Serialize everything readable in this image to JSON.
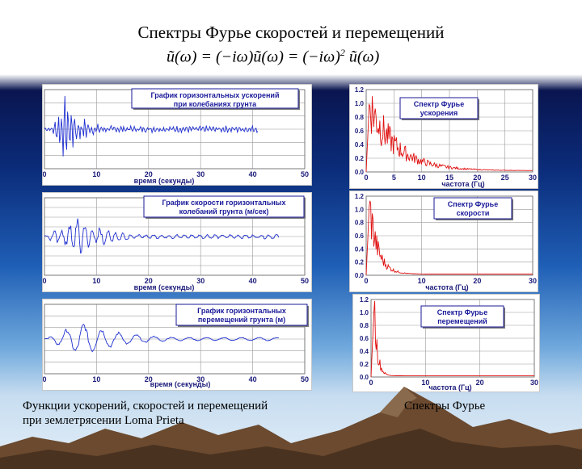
{
  "slide": {
    "title": "Спектры Фурье скоростей и перемещений",
    "formula": {
      "lhs": "ũ(ω) = (−iω)ũ(ω) = (−iω)",
      "power": "2",
      "rhs": " ũ(ω)"
    }
  },
  "left_panels": [
    {
      "title_lines": [
        "График горизонтальных ускорений",
        "при колебаниях грунта"
      ],
      "y_ticks": [
        "6.0",
        "4.0",
        "2.0",
        "0.0",
        "-2.0",
        "-4.0",
        "-6.0"
      ],
      "x_ticks": [
        "0",
        "10",
        "20",
        "30",
        "40",
        "50"
      ],
      "x_label": "время (секунды)"
    },
    {
      "title_lines": [
        "График скорости горизонтальных",
        "колебаний грунта (м/сек)"
      ],
      "y_ticks": [
        "0.4",
        "0.3",
        "0.2",
        "0.1",
        "0.0",
        "-0.1",
        "-0.2",
        "-0.3",
        "-0.4"
      ],
      "x_ticks": [
        "0",
        "10",
        "20",
        "30",
        "40",
        "50"
      ],
      "x_label": "время (секунды)"
    },
    {
      "title_lines": [
        "График горизонтальных",
        "перемещений грунта (м)"
      ],
      "y_ticks": [
        "0.15",
        "0.10",
        "0.05",
        "0.00",
        "-0.05",
        "-0.10",
        "-0.15"
      ],
      "x_ticks": [
        "0",
        "10",
        "20",
        "30",
        "40",
        "50"
      ],
      "x_label": "время (секунды)"
    }
  ],
  "right_panels": [
    {
      "title_lines": [
        "Спектр Фурье",
        "ускорения"
      ],
      "y_ticks": [
        "1.2",
        "1.0",
        "0.8",
        "0.6",
        "0.4",
        "0.2",
        "0.0"
      ],
      "x_ticks": [
        "0",
        "5",
        "10",
        "15",
        "20",
        "25",
        "30"
      ],
      "x_label": "частота (Гц)"
    },
    {
      "title_lines": [
        "Спектр Фурье",
        "скорости"
      ],
      "y_ticks": [
        "1.2",
        "1.0",
        "0.8",
        "0.6",
        "0.4",
        "0.2",
        "0.0"
      ],
      "x_ticks": [
        "0",
        "10",
        "20",
        "30"
      ],
      "x_label": "частота (Гц)"
    },
    {
      "title_lines": [
        "Спектр Фурье",
        "перемещений"
      ],
      "y_ticks": [
        "1.2",
        "1.0",
        "0.8",
        "0.6",
        "0.4",
        "0.2",
        "0.0"
      ],
      "x_ticks": [
        "0",
        "10",
        "20",
        "30"
      ],
      "x_label": "частота (Гц)"
    }
  ],
  "captions": {
    "left_line1": "Функции ускорений, скоростей и перемещений",
    "left_line2": "при землетрясении Loma Prieta",
    "right": "Спектры Фурье"
  },
  "colors": {
    "time_signal": "#1f2fd0",
    "spectrum": "#e01010",
    "panel_title": "#1a1a9a",
    "axis_text": "#1a1a7a"
  }
}
